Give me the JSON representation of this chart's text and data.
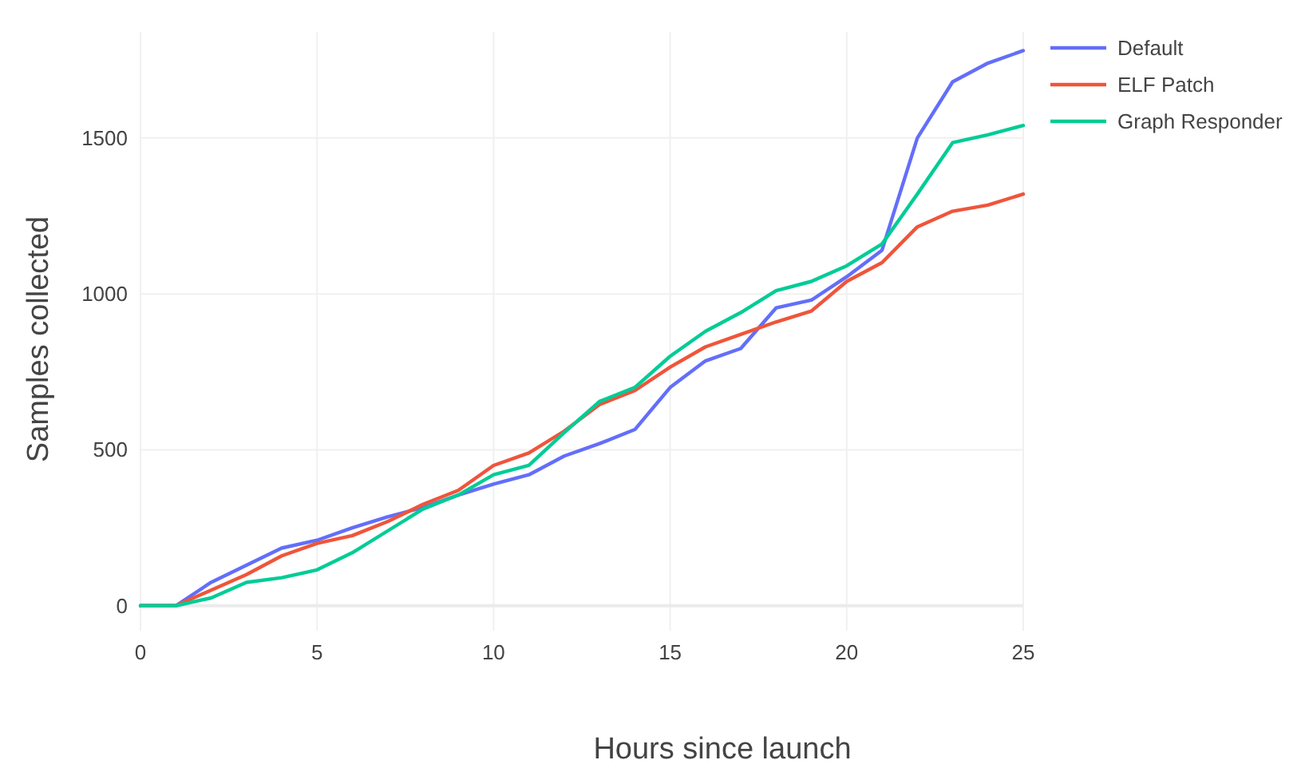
{
  "chart_data": {
    "type": "line",
    "xlabel": "Hours since launch",
    "ylabel": "Samples collected",
    "x": [
      0,
      1,
      2,
      3,
      4,
      5,
      6,
      7,
      8,
      9,
      10,
      11,
      12,
      13,
      14,
      15,
      16,
      17,
      18,
      19,
      20,
      21,
      22,
      23,
      24,
      25
    ],
    "series": [
      {
        "name": "Default",
        "color": "#636efa",
        "values": [
          0,
          0,
          75,
          130,
          185,
          210,
          250,
          285,
          315,
          355,
          390,
          420,
          480,
          520,
          565,
          700,
          785,
          825,
          955,
          980,
          1055,
          1140,
          1500,
          1680,
          1740,
          1780
        ]
      },
      {
        "name": "ELF Patch",
        "color": "#ef553b",
        "values": [
          0,
          0,
          50,
          100,
          160,
          200,
          225,
          270,
          325,
          370,
          450,
          490,
          560,
          645,
          690,
          765,
          830,
          870,
          910,
          945,
          1040,
          1100,
          1215,
          1265,
          1285,
          1320
        ]
      },
      {
        "name": "Graph Responder",
        "color": "#00cc96",
        "values": [
          0,
          0,
          25,
          75,
          90,
          115,
          170,
          240,
          310,
          355,
          420,
          450,
          555,
          655,
          700,
          800,
          880,
          940,
          1010,
          1040,
          1090,
          1160,
          1320,
          1485,
          1510,
          1540
        ]
      }
    ],
    "xlim": [
      0,
      25
    ],
    "xticks": [
      0,
      5,
      10,
      15,
      20,
      25
    ],
    "ylim": [
      -80,
      1840
    ],
    "yticks": [
      0,
      500,
      1000,
      1500
    ],
    "grid": true,
    "legend": "top right"
  }
}
